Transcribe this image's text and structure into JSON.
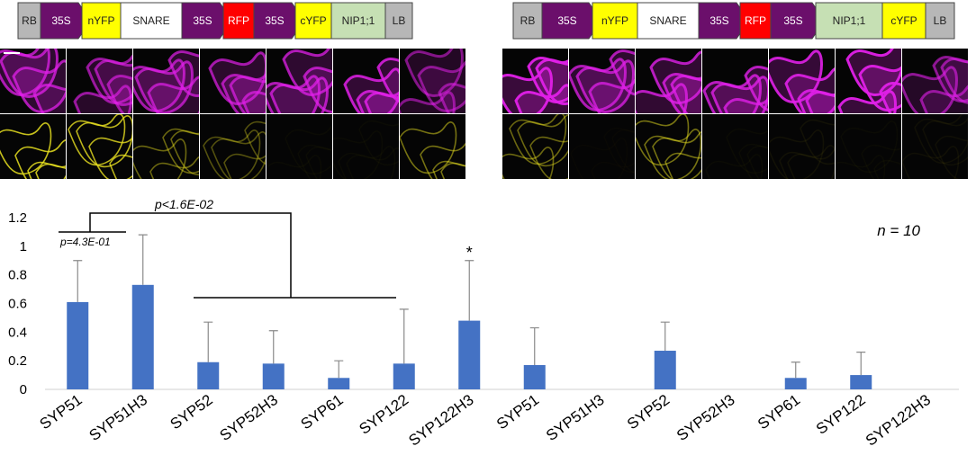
{
  "constructs": [
    {
      "id": "left",
      "blocks": [
        {
          "label": "RB",
          "shape": "rect",
          "color": "#b7b7b7",
          "text_color": "#222222"
        },
        {
          "label": "35S",
          "shape": "arrow",
          "color": "#6b0f6b",
          "text_color": "#ffffff"
        },
        {
          "label": "nYFP",
          "shape": "rect",
          "color": "#ffff00",
          "text_color": "#222222"
        },
        {
          "label": "SNARE",
          "shape": "rect",
          "color": "#ffffff",
          "text_color": "#222222"
        },
        {
          "label": "35S",
          "shape": "arrow",
          "color": "#6b0f6b",
          "text_color": "#ffffff"
        },
        {
          "label": "RFP",
          "shape": "rect",
          "color": "#ff0000",
          "text_color": "#ffffff"
        },
        {
          "label": "35S",
          "shape": "arrow",
          "color": "#6b0f6b",
          "text_color": "#ffffff"
        },
        {
          "label": "cYFP",
          "shape": "rect",
          "color": "#ffff00",
          "text_color": "#222222"
        },
        {
          "label": "NIP1;1",
          "shape": "rect",
          "color": "#c6e0b4",
          "text_color": "#222222"
        },
        {
          "label": "LB",
          "shape": "rect",
          "color": "#b7b7b7",
          "text_color": "#222222"
        }
      ]
    },
    {
      "id": "right",
      "blocks": [
        {
          "label": "RB",
          "shape": "rect",
          "color": "#b7b7b7",
          "text_color": "#222222"
        },
        {
          "label": "35S",
          "shape": "arrow",
          "color": "#6b0f6b",
          "text_color": "#ffffff"
        },
        {
          "label": "nYFP",
          "shape": "rect",
          "color": "#ffff00",
          "text_color": "#222222"
        },
        {
          "label": "SNARE",
          "shape": "rect",
          "color": "#ffffff",
          "text_color": "#222222"
        },
        {
          "label": "35S",
          "shape": "arrow",
          "color": "#6b0f6b",
          "text_color": "#ffffff"
        },
        {
          "label": "RFP",
          "shape": "rect",
          "color": "#ff0000",
          "text_color": "#ffffff"
        },
        {
          "label": "35S",
          "shape": "arrow",
          "color": "#6b0f6b",
          "text_color": "#ffffff"
        },
        {
          "label": "NIP1;1",
          "shape": "rect",
          "color": "#c6e0b4",
          "text_color": "#222222"
        },
        {
          "label": "cYFP",
          "shape": "rect",
          "color": "#ffff00",
          "text_color": "#222222"
        },
        {
          "label": "LB",
          "shape": "rect",
          "color": "#b7b7b7",
          "text_color": "#222222"
        }
      ]
    }
  ],
  "micrographs": {
    "rfp_color": "#e020e8",
    "yfp_color": "#e8e020",
    "panels": [
      {
        "group": "left",
        "rfp_intensity": 0.75,
        "yfp_intensity": 0.85
      },
      {
        "group": "left",
        "rfp_intensity": 0.65,
        "yfp_intensity": 0.8
      },
      {
        "group": "left",
        "rfp_intensity": 0.7,
        "yfp_intensity": 0.45
      },
      {
        "group": "left",
        "rfp_intensity": 0.7,
        "yfp_intensity": 0.35
      },
      {
        "group": "left",
        "rfp_intensity": 0.75,
        "yfp_intensity": 0.03
      },
      {
        "group": "left",
        "rfp_intensity": 0.85,
        "yfp_intensity": 0.03
      },
      {
        "group": "left",
        "rfp_intensity": 0.55,
        "yfp_intensity": 0.5
      },
      {
        "group": "right",
        "rfp_intensity": 0.95,
        "yfp_intensity": 0.45
      },
      {
        "group": "right",
        "rfp_intensity": 0.75,
        "yfp_intensity": 0.02
      },
      {
        "group": "right",
        "rfp_intensity": 0.8,
        "yfp_intensity": 0.5
      },
      {
        "group": "right",
        "rfp_intensity": 0.8,
        "yfp_intensity": 0.03
      },
      {
        "group": "right",
        "rfp_intensity": 0.9,
        "yfp_intensity": 0.06
      },
      {
        "group": "right",
        "rfp_intensity": 0.95,
        "yfp_intensity": 0.03
      },
      {
        "group": "right",
        "rfp_intensity": 0.6,
        "yfp_intensity": 0.05
      }
    ]
  },
  "chart_data": {
    "type": "bar",
    "categories": [
      "SYP51",
      "SYP51H3",
      "SYP52",
      "SYP52H3",
      "SYP61",
      "SYP122",
      "SYP122H3",
      "SYP51",
      "SYP51H3",
      "SYP52",
      "SYP52H3",
      "SYP61",
      "SYP122",
      "SYP122H3"
    ],
    "values": [
      0.61,
      0.73,
      0.19,
      0.18,
      0.08,
      0.18,
      0.48,
      0.17,
      0,
      0.27,
      0,
      0.08,
      0.1,
      0
    ],
    "errors": [
      0.29,
      0.35,
      0.28,
      0.23,
      0.12,
      0.38,
      0.42,
      0.26,
      0,
      0.2,
      0,
      0.11,
      0.16,
      0
    ],
    "ylim": [
      0,
      1.2
    ],
    "yticks": [
      "0",
      "0.2",
      "0.4",
      "0.6",
      "0.8",
      "1",
      "1.2"
    ],
    "bar_color": "#4472c4",
    "xlabel": "",
    "ylabel": "",
    "annotations": {
      "sample_size": "n = 10",
      "pvalue_inner": "p=4.3E-01",
      "pvalue_outer": "p<1.6E-02",
      "significance": "*"
    }
  }
}
